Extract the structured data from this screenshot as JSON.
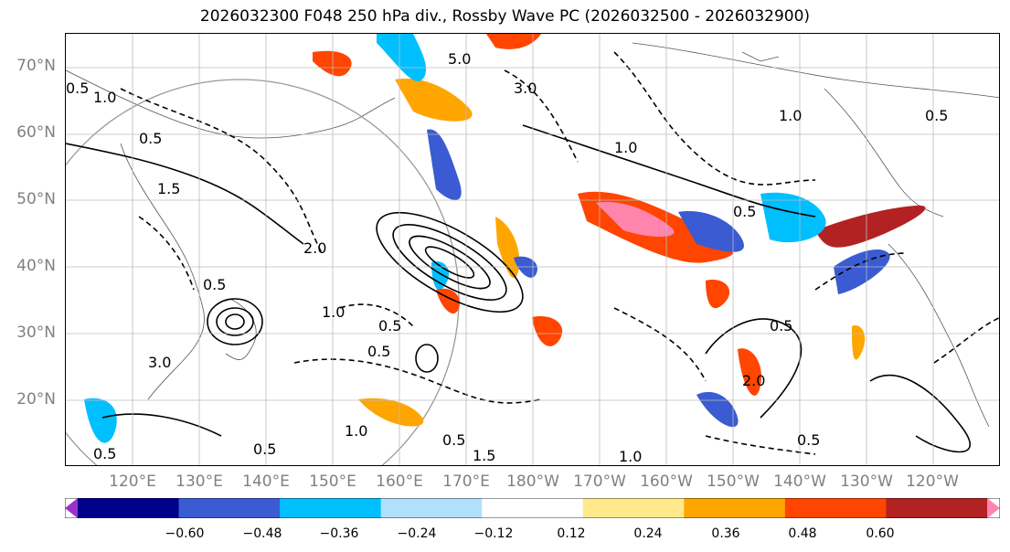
{
  "title": "2026032300 F048 250 hPa div., Rossby Wave PC (2026032500 - 2026032900)",
  "latitude_labels": [
    "70°N",
    "60°N",
    "50°N",
    "40°N",
    "30°N",
    "20°N"
  ],
  "longitude_labels": [
    "120°E",
    "130°E",
    "140°E",
    "150°E",
    "160°E",
    "170°E",
    "180°W",
    "170°W",
    "160°W",
    "150°W",
    "140°W",
    "130°W",
    "120°W"
  ],
  "contour_labels": [
    "5.0",
    "3.0",
    "1.5",
    "0.5",
    "1.0",
    "0.5",
    "2.0",
    "3.0",
    "1.0",
    "0.5",
    "0.5",
    "2.0",
    "0.5",
    "1.0",
    "0.5",
    "0.5",
    "1.0",
    "1.5",
    "1.0",
    "0.5",
    "0.5",
    "1.0",
    "0.5",
    "0.5",
    "0.5"
  ],
  "colorbar": {
    "colors": [
      "#9932CC",
      "#00008B",
      "#3A5BD1",
      "#00BFFF",
      "#B0E0FA",
      "#FFFFFF",
      "#FFE98A",
      "#FFA500",
      "#FF4500",
      "#B22222",
      "#FF85AD"
    ],
    "tick_labels": [
      "−0.60",
      "−0.48",
      "−0.36",
      "−0.24",
      "−0.12",
      "0.12",
      "0.24",
      "0.36",
      "0.48",
      "0.60"
    ],
    "tick_values": [
      -0.6,
      -0.48,
      -0.36,
      -0.24,
      -0.12,
      0.12,
      0.24,
      0.36,
      0.48,
      0.6
    ]
  }
}
